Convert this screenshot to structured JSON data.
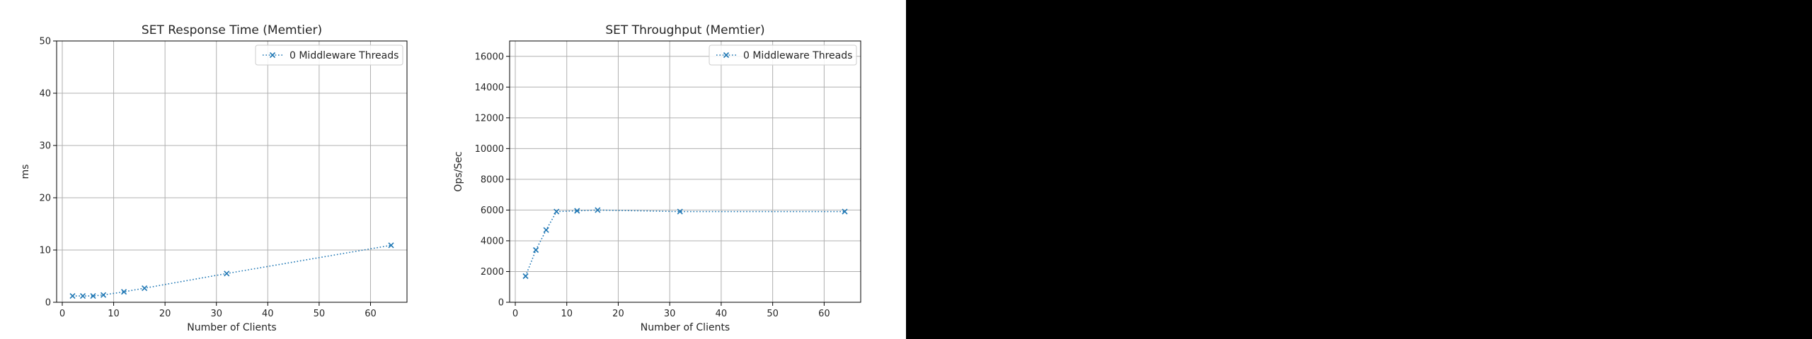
{
  "colors": {
    "series": "#1f77b4",
    "grid": "#b0b0b0",
    "axes": "#000000",
    "background": "#ffffff",
    "right_panel": "#000000"
  },
  "chart_data": [
    {
      "type": "line",
      "title": "SET Response Time (Memtier)",
      "xlabel": "Number of Clients",
      "ylabel": "ms",
      "xlim": [
        -1.1,
        67.1
      ],
      "ylim": [
        0,
        50
      ],
      "xticks": [
        0,
        10,
        20,
        30,
        40,
        50,
        60
      ],
      "yticks": [
        0,
        10,
        20,
        30,
        40,
        50
      ],
      "grid": true,
      "legend": "top-right",
      "series": [
        {
          "name": "0 Middleware Threads",
          "x": [
            2,
            4,
            6,
            8,
            12,
            16,
            32,
            64
          ],
          "y": [
            1.2,
            1.2,
            1.2,
            1.4,
            2.0,
            2.7,
            5.5,
            10.9
          ]
        }
      ]
    },
    {
      "type": "line",
      "title": "SET Throughput (Memtier)",
      "xlabel": "Number of Clients",
      "ylabel": "Ops/Sec",
      "xlim": [
        -1.1,
        67.1
      ],
      "ylim": [
        0,
        17000
      ],
      "xticks": [
        0,
        10,
        20,
        30,
        40,
        50,
        60
      ],
      "yticks": [
        0,
        2000,
        4000,
        6000,
        8000,
        10000,
        12000,
        14000,
        16000
      ],
      "grid": true,
      "legend": "top-right",
      "series": [
        {
          "name": "0 Middleware Threads",
          "x": [
            2,
            4,
            6,
            8,
            12,
            16,
            32,
            64
          ],
          "y": [
            1700,
            3400,
            4700,
            5900,
            5950,
            6000,
            5900,
            5900
          ]
        }
      ]
    }
  ]
}
